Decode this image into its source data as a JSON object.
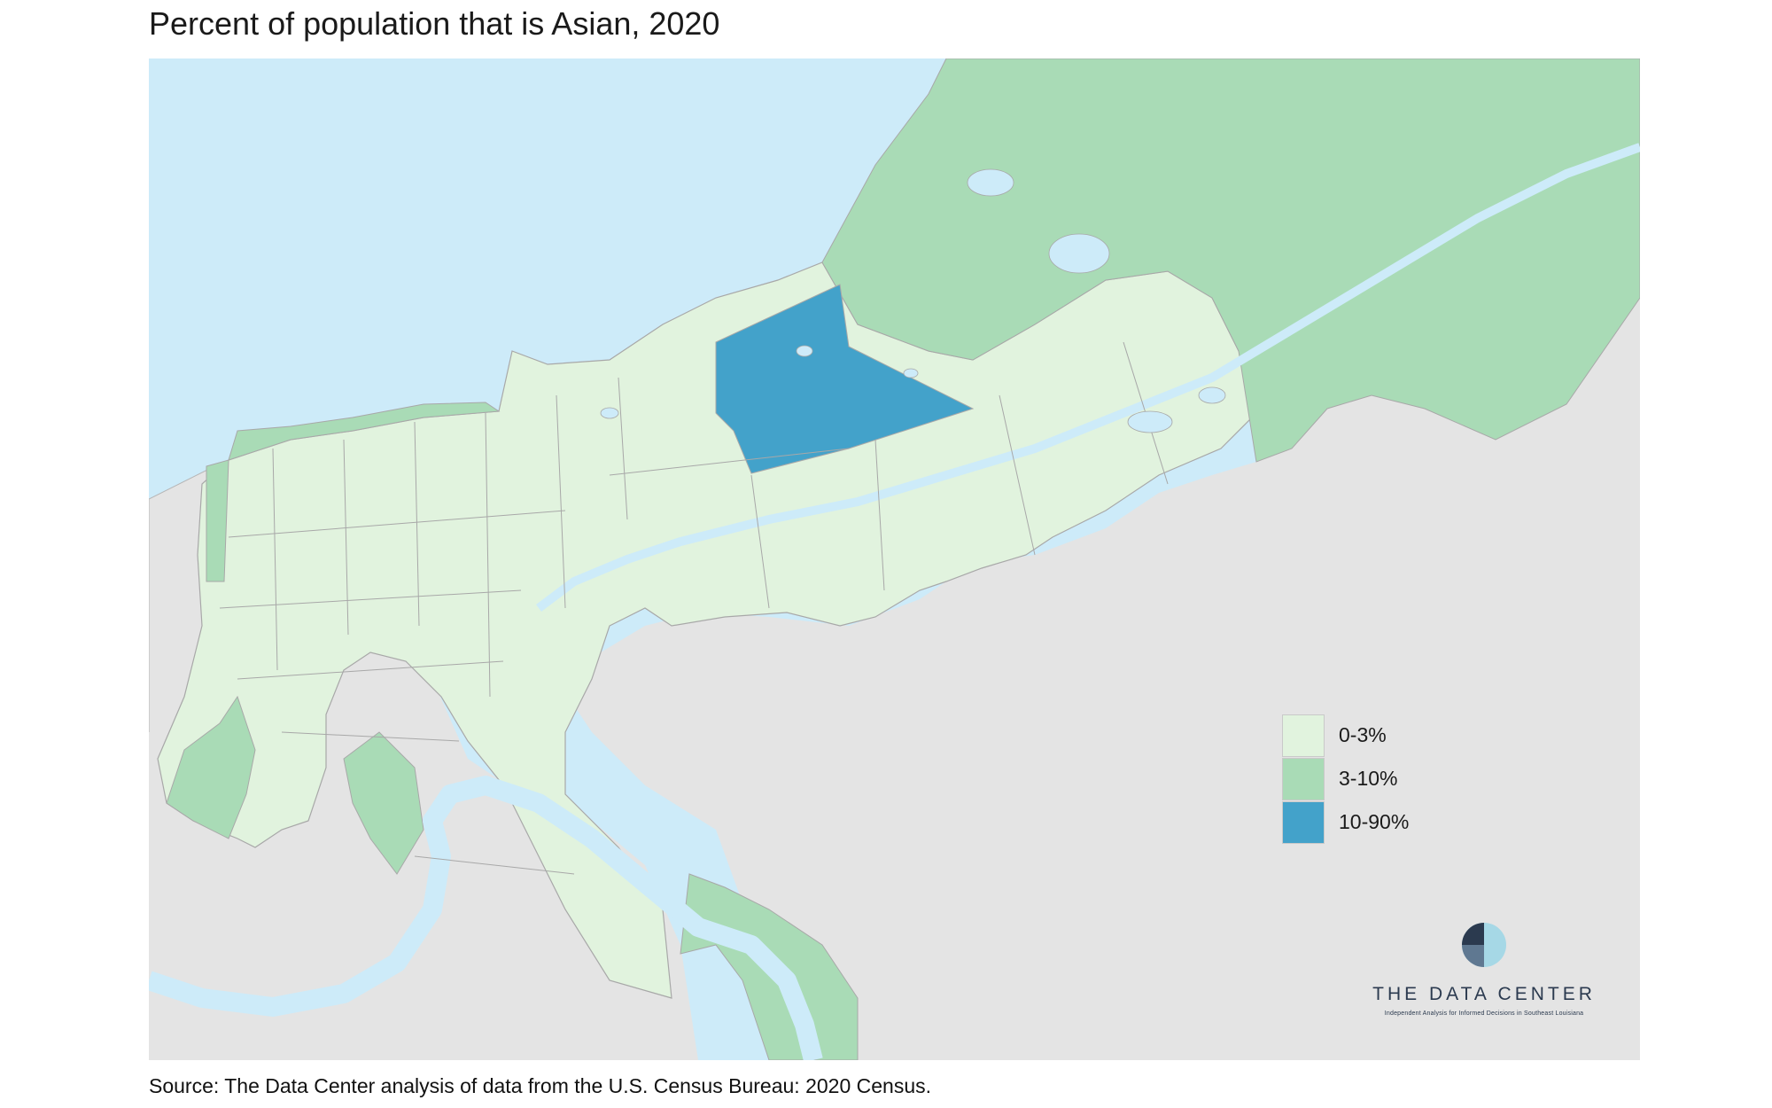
{
  "title": "Percent of population that is Asian, 2020",
  "source": "Source: The Data Center analysis of data from the U.S. Census Bureau: 2020 Census.",
  "colors": {
    "water": "#cdebf9",
    "land_outside": "#e4e4e4",
    "low": "#e1f3de",
    "mid": "#a9dbb6",
    "high": "#43a2ca",
    "boundary": "#a8a8a8"
  },
  "legend": {
    "items": [
      {
        "label": "0-3%",
        "color": "#e1f3de"
      },
      {
        "label": "3-10%",
        "color": "#a9dbb6"
      },
      {
        "label": "10-90%",
        "color": "#43a2ca"
      }
    ]
  },
  "logo": {
    "name": "THE DATA CENTER",
    "tagline": "Independent Analysis for Informed Decisions in Southeast Louisiana"
  }
}
